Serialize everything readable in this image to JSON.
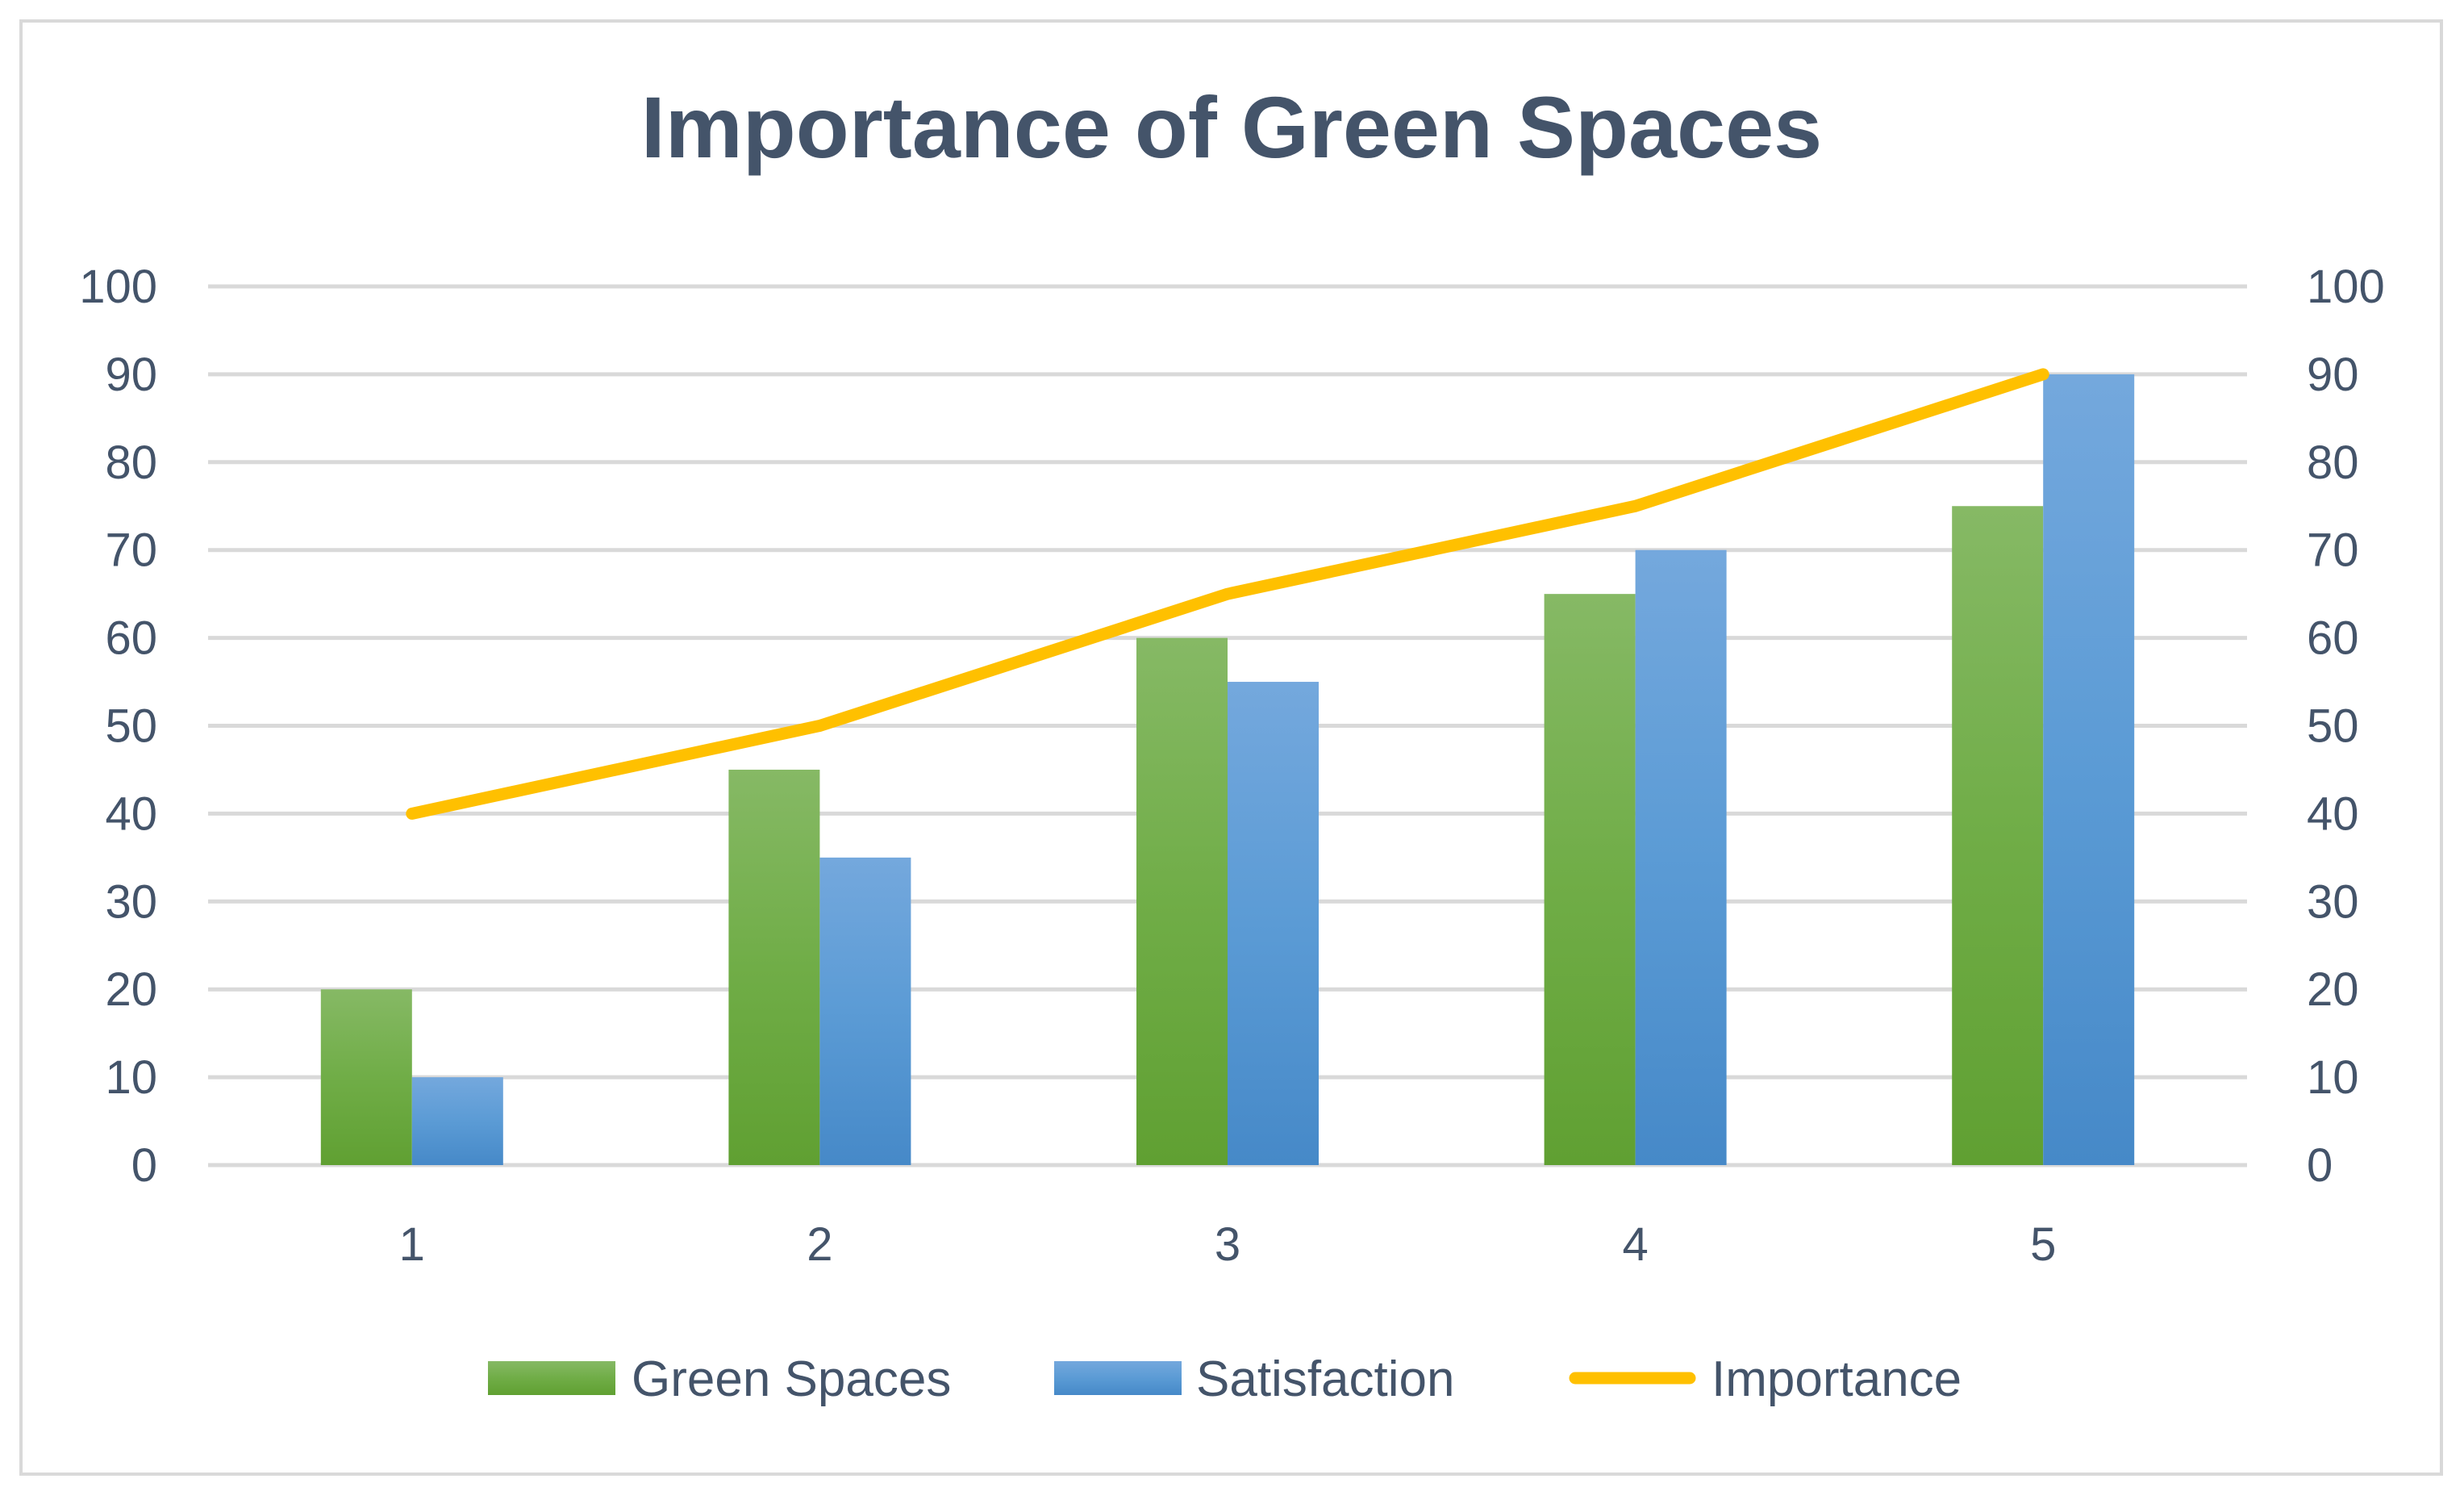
{
  "chart_data": {
    "type": "bar",
    "title": "Importance of Green Spaces",
    "categories": [
      "1",
      "2",
      "3",
      "4",
      "5"
    ],
    "series": [
      {
        "name": "Green Spaces",
        "type": "bar",
        "axis": "left",
        "color": "#70ad47",
        "values": [
          20,
          45,
          60,
          65,
          75
        ]
      },
      {
        "name": "Satisfaction",
        "type": "bar",
        "axis": "left",
        "color": "#5b9bd5",
        "values": [
          10,
          35,
          55,
          70,
          90
        ]
      },
      {
        "name": "Importance",
        "type": "line",
        "axis": "right",
        "color": "#ffc000",
        "values": [
          40,
          50,
          65,
          75,
          90
        ]
      }
    ],
    "ylim": [
      0,
      100
    ],
    "y2lim": [
      0,
      100
    ],
    "yticks": [
      0,
      10,
      20,
      30,
      40,
      50,
      60,
      70,
      80,
      90,
      100
    ],
    "y2ticks": [
      0,
      10,
      20,
      30,
      40,
      50,
      60,
      70,
      80,
      90,
      100
    ],
    "grid": true,
    "legend_position": "bottom",
    "colors": {
      "gridline": "#d9d9d9",
      "text": "#44546a",
      "frame": "#d9d9d9"
    }
  }
}
